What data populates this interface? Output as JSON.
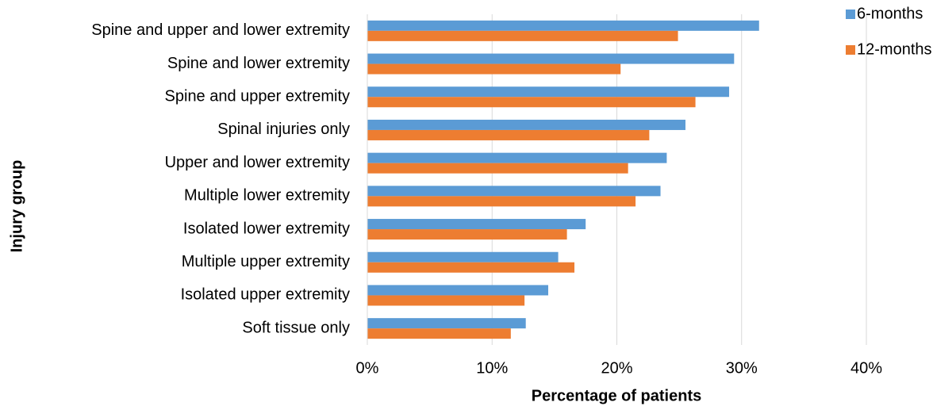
{
  "chart_data": {
    "type": "bar",
    "orientation": "horizontal",
    "x_label": "Percentage of patients",
    "y_label": "Injury group",
    "categories": [
      "Spine and upper and lower extremity",
      "Spine and lower extremity",
      "Spine and upper extremity",
      "Spinal injuries only",
      "Upper and lower extremity",
      "Multiple lower extremity",
      "Isolated lower extremity",
      "Multiple upper extremity",
      "Isolated upper extremity",
      "Soft tissue only"
    ],
    "series": [
      {
        "name": "6-months",
        "color": "#5b9bd5",
        "values": [
          31.4,
          29.4,
          29.0,
          25.5,
          24.0,
          23.5,
          17.5,
          15.3,
          14.5,
          12.7
        ]
      },
      {
        "name": "12-months",
        "color": "#ed7d31",
        "values": [
          24.9,
          20.3,
          26.3,
          22.6,
          20.9,
          21.5,
          16.0,
          16.6,
          12.6,
          11.5
        ]
      }
    ],
    "xlim": [
      0,
      40
    ],
    "xticks": [
      {
        "value": 0,
        "label": "0%"
      },
      {
        "value": 10,
        "label": "10%"
      },
      {
        "value": 20,
        "label": "20%"
      },
      {
        "value": 30,
        "label": "30%"
      },
      {
        "value": 40,
        "label": "40%"
      }
    ],
    "grid": true,
    "legend": "top-right"
  }
}
